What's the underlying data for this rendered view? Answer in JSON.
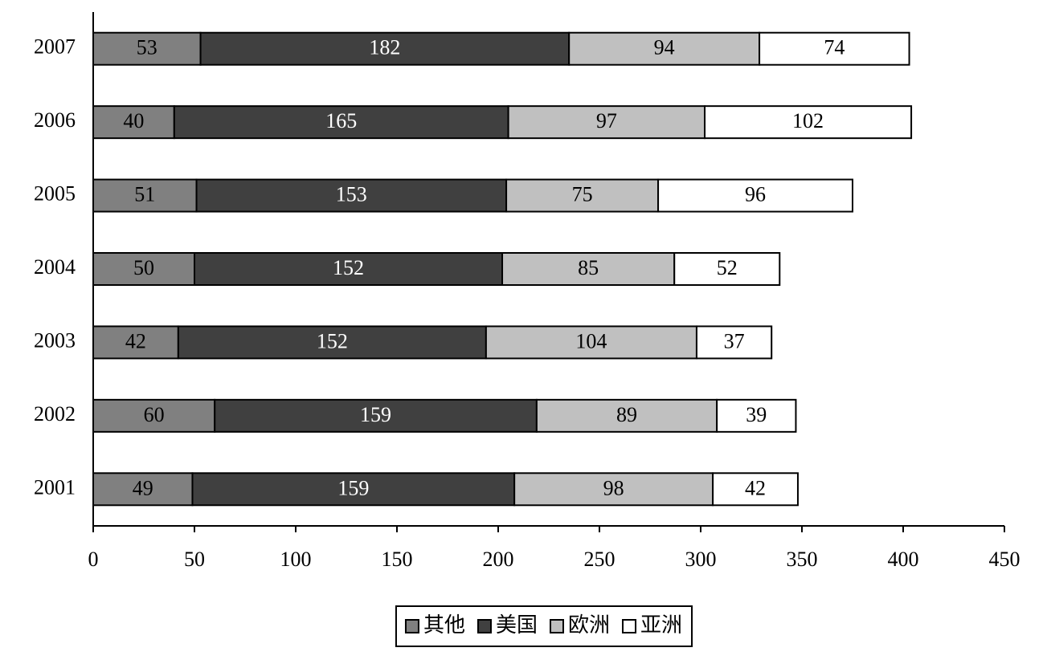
{
  "chart_data": {
    "type": "stacked-barh",
    "categories": [
      "2001",
      "2002",
      "2003",
      "2004",
      "2005",
      "2006",
      "2007"
    ],
    "series": [
      {
        "name": "其他",
        "color": "#808080",
        "label_color": "#000000",
        "values": [
          49,
          60,
          42,
          50,
          51,
          40,
          53
        ]
      },
      {
        "name": "美国",
        "color": "#404040",
        "label_color": "#ffffff",
        "values": [
          159,
          159,
          152,
          152,
          153,
          165,
          182
        ]
      },
      {
        "name": "欧洲",
        "color": "#c0c0c0",
        "label_color": "#000000",
        "values": [
          98,
          89,
          104,
          85,
          75,
          97,
          94
        ]
      },
      {
        "name": "亚洲",
        "color": "#ffffff",
        "label_color": "#000000",
        "values": [
          42,
          39,
          37,
          52,
          96,
          102,
          74
        ]
      }
    ],
    "xlim": [
      0,
      450
    ],
    "xticks": [
      0,
      50,
      100,
      150,
      200,
      250,
      300,
      350,
      400,
      450
    ],
    "legend": "bottom"
  }
}
